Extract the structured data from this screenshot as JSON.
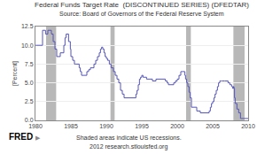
{
  "chart_data": {
    "type": "line",
    "title": "Federal Funds Target Rate  (DISCONTINUED SERIES) (DFEDTAR)",
    "subtitle": "Source: Board of Governors of the Federal Reserve System",
    "ylabel": "[Percent]",
    "annotations": [
      "Shaded areas indicate US recessions.",
      "2012 research.stlouisfed.org",
      "FRED",
      "▶"
    ],
    "x": [
      1980.0,
      1980.08,
      1981.0,
      1981.42,
      1981.75,
      1982.0,
      1982.25,
      1982.5,
      1982.75,
      1983.0,
      1983.5,
      1984.0,
      1984.17,
      1984.33,
      1984.5,
      1984.67,
      1984.92,
      1985.0,
      1985.25,
      1985.5,
      1985.67,
      1986.0,
      1986.17,
      1986.33,
      1986.5,
      1986.75,
      1987.0,
      1987.25,
      1987.5,
      1987.75,
      1988.0,
      1988.25,
      1988.5,
      1988.75,
      1989.0,
      1989.17,
      1989.33,
      1989.5,
      1989.67,
      1989.83,
      1990.0,
      1990.17,
      1990.42,
      1990.67,
      1991.0,
      1991.25,
      1991.5,
      1991.75,
      1992.0,
      1992.25,
      1992.5,
      1993.0,
      1993.5,
      1994.0,
      1994.17,
      1994.33,
      1994.5,
      1994.67,
      1994.83,
      1995.0,
      1995.17,
      1995.5,
      1995.67,
      1996.0,
      1996.5,
      1997.0,
      1997.5,
      1998.0,
      1998.33,
      1998.58,
      1998.75,
      1999.0,
      1999.25,
      1999.5,
      1999.75,
      2000.0,
      2000.25,
      2000.5,
      2000.67,
      2001.0,
      2001.08,
      2001.17,
      2001.33,
      2001.5,
      2001.67,
      2001.83,
      2002.0,
      2002.25,
      2002.75,
      2003.25,
      2003.75,
      2004.5,
      2004.67,
      2004.83,
      2005.0,
      2005.17,
      2005.33,
      2005.5,
      2005.67,
      2005.83,
      2006.0,
      2006.17,
      2006.33,
      2006.5,
      2006.67,
      2007.0,
      2007.17,
      2007.42,
      2007.67,
      2007.83,
      2007.92,
      2008.0,
      2008.08,
      2008.17,
      2008.42,
      2008.67,
      2008.92,
      2009.0,
      2009.5,
      2010.0
    ],
    "values": [
      10.0,
      10.0,
      12.0,
      11.5,
      12.0,
      12.0,
      11.5,
      10.5,
      9.5,
      8.5,
      9.0,
      10.0,
      11.0,
      11.5,
      11.5,
      10.5,
      9.5,
      8.5,
      8.0,
      7.5,
      7.5,
      7.5,
      7.0,
      6.5,
      6.0,
      6.0,
      6.0,
      6.5,
      6.75,
      7.0,
      7.0,
      7.5,
      8.0,
      8.5,
      9.0,
      9.5,
      9.75,
      9.5,
      9.0,
      8.5,
      8.25,
      8.0,
      7.5,
      7.0,
      6.5,
      6.0,
      5.5,
      5.0,
      4.0,
      3.5,
      3.0,
      3.0,
      3.0,
      3.0,
      3.5,
      4.0,
      4.75,
      5.5,
      5.75,
      6.0,
      5.75,
      5.75,
      5.5,
      5.5,
      5.25,
      5.5,
      5.5,
      5.5,
      5.25,
      5.0,
      4.75,
      4.75,
      4.75,
      5.0,
      5.25,
      5.5,
      6.0,
      6.5,
      6.5,
      6.5,
      6.0,
      5.5,
      5.0,
      4.5,
      3.75,
      3.0,
      1.75,
      1.75,
      1.25,
      1.0,
      1.0,
      1.25,
      1.75,
      2.25,
      2.5,
      3.0,
      3.5,
      4.0,
      4.5,
      5.0,
      5.25,
      5.25,
      5.25,
      5.25,
      5.25,
      5.25,
      5.0,
      4.75,
      4.5,
      4.25,
      4.5,
      4.25,
      3.0,
      2.25,
      1.5,
      1.0,
      0.25,
      0.25,
      0.25,
      0.25
    ],
    "color": "#5555bb",
    "line_style": "step",
    "recessions": {
      "color": "#b8b8b8",
      "ranges": [
        [
          1981.5,
          1982.92
        ],
        [
          1990.58,
          1991.17
        ],
        [
          2001.25,
          2001.92
        ],
        [
          2007.92,
          2009.5
        ]
      ]
    },
    "xlim": [
      1980,
      2010
    ],
    "ylim": [
      0.0,
      12.5
    ],
    "xticks": [
      1980,
      1985,
      1990,
      1995,
      2000,
      2005,
      2010
    ],
    "yticks": [
      {
        "value": 0.0,
        "label": "0.0"
      },
      2.5,
      {
        "value": 5.0,
        "label": "5.0"
      },
      7.5,
      {
        "value": 10.0,
        "label": "10.0"
      },
      12.5
    ],
    "grid": "y"
  }
}
